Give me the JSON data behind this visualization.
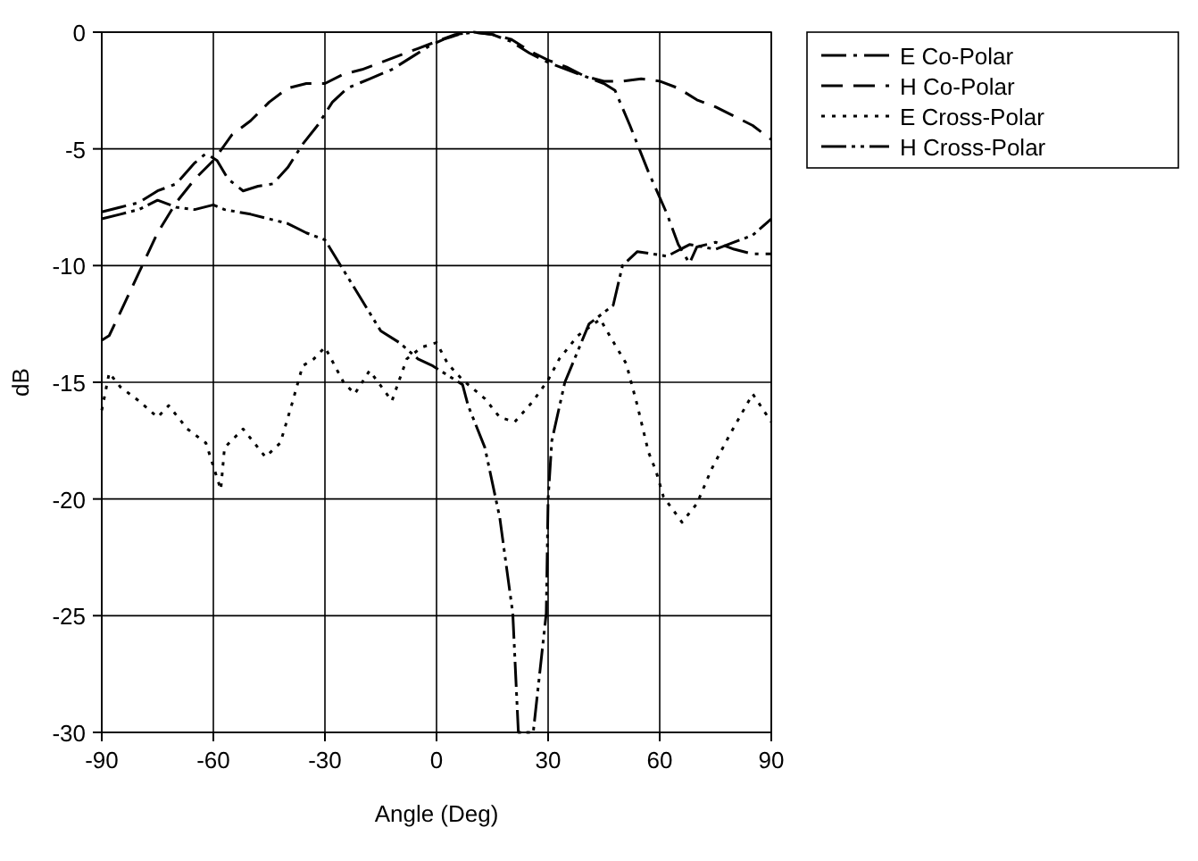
{
  "chart_data": {
    "type": "line",
    "xlabel": "Angle (Deg)",
    "ylabel": "dB",
    "xlim": [
      -90,
      90
    ],
    "xticks": [
      -90,
      -60,
      -30,
      0,
      30,
      60,
      90
    ],
    "ylim": [
      -30,
      0
    ],
    "yticks": [
      -30,
      -25,
      -20,
      -15,
      -10,
      -5,
      0
    ],
    "grid": true,
    "legend": "right",
    "marker": "none",
    "series": [
      {
        "name": "E Co-Polar",
        "color": "#000000",
        "line_style": "dashdot",
        "x": [
          -90,
          -85,
          -80,
          -75,
          -70,
          -65,
          -62,
          -59,
          -56,
          -52,
          -48,
          -44,
          -40,
          -36,
          -32,
          -28,
          -24,
          -18,
          -12,
          -6,
          -2,
          2,
          6,
          10,
          15,
          20,
          25,
          30,
          35,
          40,
          45,
          48,
          52,
          57,
          62,
          65,
          68,
          70,
          75,
          80,
          85,
          90
        ],
        "values": [
          -7.7,
          -7.5,
          -7.3,
          -6.8,
          -6.5,
          -5.6,
          -5.2,
          -5.5,
          -6.3,
          -6.8,
          -6.6,
          -6.5,
          -5.8,
          -4.8,
          -4,
          -3,
          -2.4,
          -2,
          -1.6,
          -1,
          -0.6,
          -0.3,
          -0.1,
          0,
          -0.1,
          -0.4,
          -0.9,
          -1.3,
          -1.6,
          -1.9,
          -2.2,
          -2.5,
          -4,
          -6,
          -7.8,
          -9.1,
          -9.9,
          -9.2,
          -9,
          -9.3,
          -9.5,
          -9.5
        ]
      },
      {
        "name": "H Co-Polar",
        "color": "#000000",
        "line_style": "dashed",
        "x": [
          -90,
          -88,
          -85,
          -80,
          -75,
          -70,
          -65,
          -60,
          -55,
          -50,
          -45,
          -40,
          -35,
          -30,
          -25,
          -20,
          -15,
          -10,
          -5,
          0,
          5,
          10,
          15,
          20,
          25,
          30,
          35,
          40,
          45,
          50,
          55,
          60,
          65,
          70,
          75,
          80,
          85,
          90
        ],
        "values": [
          -13.2,
          -13,
          -12,
          -10.3,
          -8.6,
          -7.3,
          -6.3,
          -5.5,
          -4.4,
          -3.8,
          -3,
          -2.4,
          -2.2,
          -2.2,
          -1.8,
          -1.6,
          -1.3,
          -1,
          -0.7,
          -0.4,
          -0.1,
          0,
          -0.1,
          -0.3,
          -0.8,
          -1.2,
          -1.5,
          -1.9,
          -2.1,
          -2.1,
          -2,
          -2.1,
          -2.4,
          -2.9,
          -3.2,
          -3.6,
          -4,
          -4.6
        ]
      },
      {
        "name": "E Cross-Polar",
        "color": "#000000",
        "line_style": "dotted",
        "x": [
          -90,
          -88,
          -85,
          -80,
          -75,
          -72,
          -67,
          -62,
          -58,
          -57,
          -52,
          -49,
          -46,
          -42,
          -39,
          -36,
          -33,
          -30,
          -25,
          -22,
          -18,
          -12,
          -8,
          -4,
          0,
          3,
          7,
          13,
          17,
          21,
          26,
          30,
          33,
          38,
          44,
          48,
          51,
          54,
          57,
          59,
          61,
          66,
          70,
          74,
          79,
          85,
          90
        ],
        "values": [
          -16.2,
          -14.6,
          -15.2,
          -15.8,
          -16.5,
          -16,
          -17,
          -17.6,
          -19.6,
          -17.8,
          -17,
          -17.6,
          -18.2,
          -17.6,
          -16,
          -14.3,
          -14,
          -13.5,
          -15,
          -15.5,
          -14.5,
          -15.8,
          -14,
          -13.5,
          -13.3,
          -14.2,
          -14.9,
          -15.7,
          -16.5,
          -16.7,
          -15.8,
          -14.9,
          -14,
          -13,
          -12.3,
          -13.4,
          -14.2,
          -16,
          -18,
          -18.8,
          -19.9,
          -21,
          -20.2,
          -18.7,
          -17.2,
          -15.5,
          -16.7
        ]
      },
      {
        "name": "H Cross-Polar",
        "color": "#000000",
        "line_style": "dashdotdot",
        "x": [
          -90,
          -85,
          -80,
          -75,
          -70,
          -65,
          -60,
          -57,
          -50,
          -45,
          -40,
          -35,
          -30,
          -25,
          -20,
          -15,
          -10,
          -5,
          -1,
          4,
          7,
          8.5,
          13,
          15,
          17,
          20.5,
          22,
          26,
          29.5,
          30,
          31,
          34.5,
          41,
          47.5,
          50,
          54,
          62,
          68,
          75,
          80,
          85,
          90
        ],
        "values": [
          -8,
          -7.8,
          -7.6,
          -7.2,
          -7.5,
          -7.6,
          -7.4,
          -7.6,
          -7.8,
          -8,
          -8.2,
          -8.6,
          -8.9,
          -10.2,
          -11.5,
          -12.8,
          -13.3,
          -14,
          -14.3,
          -14.8,
          -15.1,
          -16,
          -17.8,
          -19.3,
          -20.8,
          -24.9,
          -30,
          -30,
          -24.9,
          -20,
          -17.5,
          -15,
          -12.5,
          -11.7,
          -10,
          -9.4,
          -9.6,
          -9.1,
          -9.3,
          -9,
          -8.7,
          -8
        ]
      }
    ]
  }
}
